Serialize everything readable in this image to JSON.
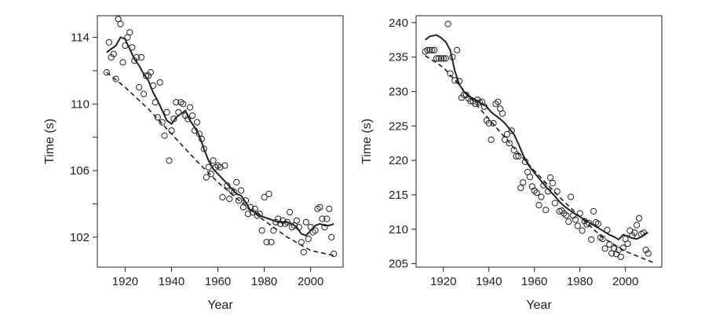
{
  "chart_data": [
    {
      "type": "scatter",
      "xlabel": "Year",
      "ylabel": "Time (s)",
      "xlim": [
        1908,
        2014
      ],
      "ylim": [
        100.2,
        115.3
      ],
      "xticks": [
        1920,
        1940,
        1960,
        1980,
        2000
      ],
      "yticks": [
        102,
        104,
        106,
        108,
        110,
        112,
        114
      ],
      "ytick_labels": [
        "102",
        "",
        "106",
        "",
        "110",
        "",
        "114"
      ],
      "points": {
        "x": [
          1912,
          1913,
          1914,
          1915,
          1916,
          1917,
          1918,
          1919,
          1920,
          1921,
          1922,
          1923,
          1924,
          1925,
          1926,
          1927,
          1928,
          1929,
          1930,
          1931,
          1932,
          1933,
          1934,
          1935,
          1936,
          1937,
          1938,
          1939,
          1940,
          1941,
          1942,
          1943,
          1944,
          1945,
          1946,
          1947,
          1948,
          1949,
          1950,
          1951,
          1952,
          1953,
          1954,
          1955,
          1956,
          1957,
          1958,
          1959,
          1960,
          1961,
          1962,
          1963,
          1964,
          1965,
          1966,
          1967,
          1968,
          1969,
          1970,
          1971,
          1972,
          1973,
          1974,
          1975,
          1976,
          1977,
          1978,
          1979,
          1980,
          1981,
          1982,
          1983,
          1984,
          1985,
          1986,
          1987,
          1988,
          1989,
          1990,
          1991,
          1992,
          1993,
          1994,
          1995,
          1996,
          1997,
          1998,
          1999,
          2000,
          2001,
          2002,
          2003,
          2004,
          2005,
          2006,
          2007,
          2008,
          2009,
          2010
        ],
        "y": [
          111.9,
          113.7,
          112.8,
          113.0,
          111.5,
          115.1,
          114.8,
          112.5,
          113.5,
          114.0,
          114.3,
          113.4,
          112.6,
          112.8,
          111.0,
          112.8,
          110.6,
          111.7,
          111.7,
          111.9,
          111.1,
          110.1,
          109.2,
          111.3,
          108.9,
          108.1,
          109.5,
          106.6,
          108.4,
          109.1,
          110.1,
          109.5,
          110.1,
          110.0,
          109.3,
          109.1,
          109.8,
          109.3,
          108.4,
          108.9,
          108.2,
          107.9,
          107.3,
          105.6,
          106.2,
          105.8,
          106.6,
          106.2,
          106.3,
          106.2,
          104.4,
          106.3,
          105.1,
          104.3,
          104.8,
          104.7,
          105.3,
          104.2,
          104.8,
          103.8,
          104.2,
          103.4,
          103.8,
          103.5,
          103.7,
          103.3,
          103.4,
          102.4,
          104.4,
          101.7,
          104.6,
          101.7,
          102.4,
          102.9,
          103.1,
          102.8,
          103.0,
          102.8,
          102.9,
          103.5,
          102.6,
          102.7,
          103.0,
          102.6,
          101.7,
          101.1,
          102.9,
          101.9,
          102.6,
          102.3,
          102.4,
          103.7,
          103.8,
          103.1,
          102.6,
          103.1,
          103.7,
          102.0,
          101.0
        ]
      },
      "smooth_line": {
        "x": [
          1912,
          1916,
          1918,
          1920,
          1922,
          1924,
          1926,
          1928,
          1930,
          1932,
          1934,
          1936,
          1938,
          1940,
          1942,
          1944,
          1946,
          1948,
          1950,
          1952,
          1954,
          1956,
          1958,
          1960,
          1962,
          1964,
          1966,
          1968,
          1970,
          1972,
          1974,
          1976,
          1978,
          1980,
          1982,
          1984,
          1986,
          1988,
          1990,
          1992,
          1994,
          1996,
          1998,
          2000,
          2002,
          2004,
          2006,
          2008,
          2010
        ],
        "y": [
          113.1,
          113.5,
          114.0,
          113.9,
          113.3,
          112.7,
          112.3,
          111.8,
          111.4,
          110.7,
          110.2,
          109.6,
          109.0,
          108.8,
          109.2,
          109.4,
          109.6,
          109.0,
          108.6,
          108.1,
          107.3,
          106.6,
          106.1,
          105.8,
          105.5,
          105.2,
          104.9,
          104.6,
          104.5,
          104.1,
          103.6,
          103.5,
          103.3,
          103.2,
          103.1,
          103.0,
          102.9,
          102.9,
          102.9,
          102.8,
          102.6,
          102.2,
          102.1,
          102.4,
          102.7,
          102.8,
          102.7,
          102.7,
          102.8
        ]
      },
      "trend_line": {
        "x": [
          1912,
          1920,
          1930,
          1940,
          1950,
          1960,
          1970,
          1980,
          1990,
          2000,
          2010
        ],
        "y": [
          111.9,
          111.0,
          109.7,
          108.2,
          106.7,
          105.3,
          104.1,
          103.0,
          102.0,
          101.2,
          100.9
        ]
      }
    },
    {
      "type": "scatter",
      "xlabel": "Year",
      "ylabel": "Time (s)",
      "xlim": [
        1908,
        2016
      ],
      "ylim": [
        204.5,
        241.0
      ],
      "xticks": [
        1920,
        1940,
        1960,
        1980,
        2000
      ],
      "yticks": [
        205,
        210,
        215,
        220,
        225,
        230,
        235,
        240
      ],
      "ytick_labels": [
        "205",
        "210",
        "215",
        "220",
        "225",
        "230",
        "235",
        "240"
      ],
      "points": {
        "x": [
          1912,
          1913,
          1914,
          1915,
          1916,
          1917,
          1918,
          1919,
          1920,
          1921,
          1922,
          1923,
          1924,
          1925,
          1926,
          1927,
          1928,
          1929,
          1930,
          1931,
          1932,
          1933,
          1934,
          1935,
          1936,
          1937,
          1938,
          1939,
          1940,
          1941,
          1942,
          1943,
          1944,
          1945,
          1946,
          1947,
          1948,
          1949,
          1950,
          1951,
          1952,
          1953,
          1954,
          1955,
          1956,
          1957,
          1958,
          1959,
          1960,
          1961,
          1962,
          1963,
          1964,
          1965,
          1966,
          1967,
          1968,
          1969,
          1970,
          1971,
          1972,
          1973,
          1974,
          1975,
          1976,
          1977,
          1978,
          1979,
          1980,
          1981,
          1982,
          1983,
          1984,
          1985,
          1986,
          1987,
          1988,
          1989,
          1990,
          1991,
          1992,
          1993,
          1994,
          1995,
          1996,
          1997,
          1998,
          1999,
          2000,
          2001,
          2002,
          2003,
          2004,
          2005,
          2006,
          2007,
          2008,
          2009,
          2010
        ],
        "y": [
          235.8,
          236.0,
          236.0,
          236.0,
          236.0,
          234.8,
          234.8,
          234.8,
          234.8,
          234.8,
          239.8,
          232.6,
          235.0,
          231.6,
          236.0,
          231.5,
          229.1,
          229.5,
          229.5,
          229.0,
          228.6,
          228.6,
          228.2,
          228.8,
          228.4,
          228.5,
          227.8,
          225.8,
          225.4,
          223.0,
          225.4,
          228.2,
          228.5,
          227.5,
          226.8,
          223.0,
          223.8,
          222.5,
          224.3,
          221.5,
          220.6,
          220.6,
          216.0,
          216.8,
          219.8,
          218.3,
          217.6,
          216.2,
          215.6,
          215.3,
          213.5,
          214.7,
          216.4,
          212.8,
          215.5,
          217.5,
          216.7,
          213.8,
          215.5,
          212.6,
          212.7,
          212.3,
          212.0,
          211.1,
          214.7,
          212.0,
          211.4,
          210.5,
          212.3,
          209.8,
          211.2,
          210.7,
          210.9,
          208.5,
          212.6,
          211.0,
          210.8,
          208.8,
          208.6,
          207.2,
          209.9,
          207.8,
          206.5,
          207.2,
          206.4,
          207.0,
          206.0,
          207.3,
          208.6,
          207.9,
          209.8,
          209.1,
          209.5,
          210.6,
          211.6,
          209.3,
          209.5,
          207.0,
          206.5
        ]
      },
      "smooth_line": {
        "x": [
          1912,
          1914,
          1917,
          1919,
          1921,
          1923,
          1925,
          1927,
          1929,
          1931,
          1933,
          1935,
          1937,
          1939,
          1941,
          1943,
          1945,
          1947,
          1949,
          1951,
          1953,
          1955,
          1957,
          1959,
          1961,
          1963,
          1965,
          1967,
          1969,
          1971,
          1973,
          1975,
          1977,
          1979,
          1981,
          1983,
          1985,
          1987,
          1989,
          1991,
          1993,
          1995,
          1997,
          1999,
          2001,
          2003,
          2005,
          2007,
          2009,
          2010
        ],
        "y": [
          237.5,
          238.0,
          238.2,
          237.8,
          237.2,
          236.0,
          233.0,
          231.0,
          230.0,
          229.3,
          229.0,
          228.6,
          228.2,
          227.8,
          227.0,
          226.5,
          226.0,
          225.4,
          224.6,
          223.8,
          222.4,
          220.8,
          219.5,
          218.6,
          217.8,
          217.0,
          216.2,
          215.5,
          214.8,
          214.0,
          213.4,
          212.9,
          212.4,
          212.0,
          211.6,
          211.2,
          210.8,
          210.4,
          210.0,
          209.6,
          209.2,
          208.9,
          208.5,
          209.2,
          209.0,
          208.7,
          208.6,
          208.9,
          209.4,
          209.5
        ]
      },
      "trend_line": {
        "x": [
          1912,
          1920,
          1930,
          1940,
          1950,
          1960,
          1970,
          1980,
          1990,
          2000,
          2012
        ],
        "y": [
          235.2,
          233.5,
          229.8,
          226.0,
          222.2,
          218.5,
          215.0,
          211.8,
          208.8,
          206.8,
          205.2
        ]
      }
    }
  ]
}
